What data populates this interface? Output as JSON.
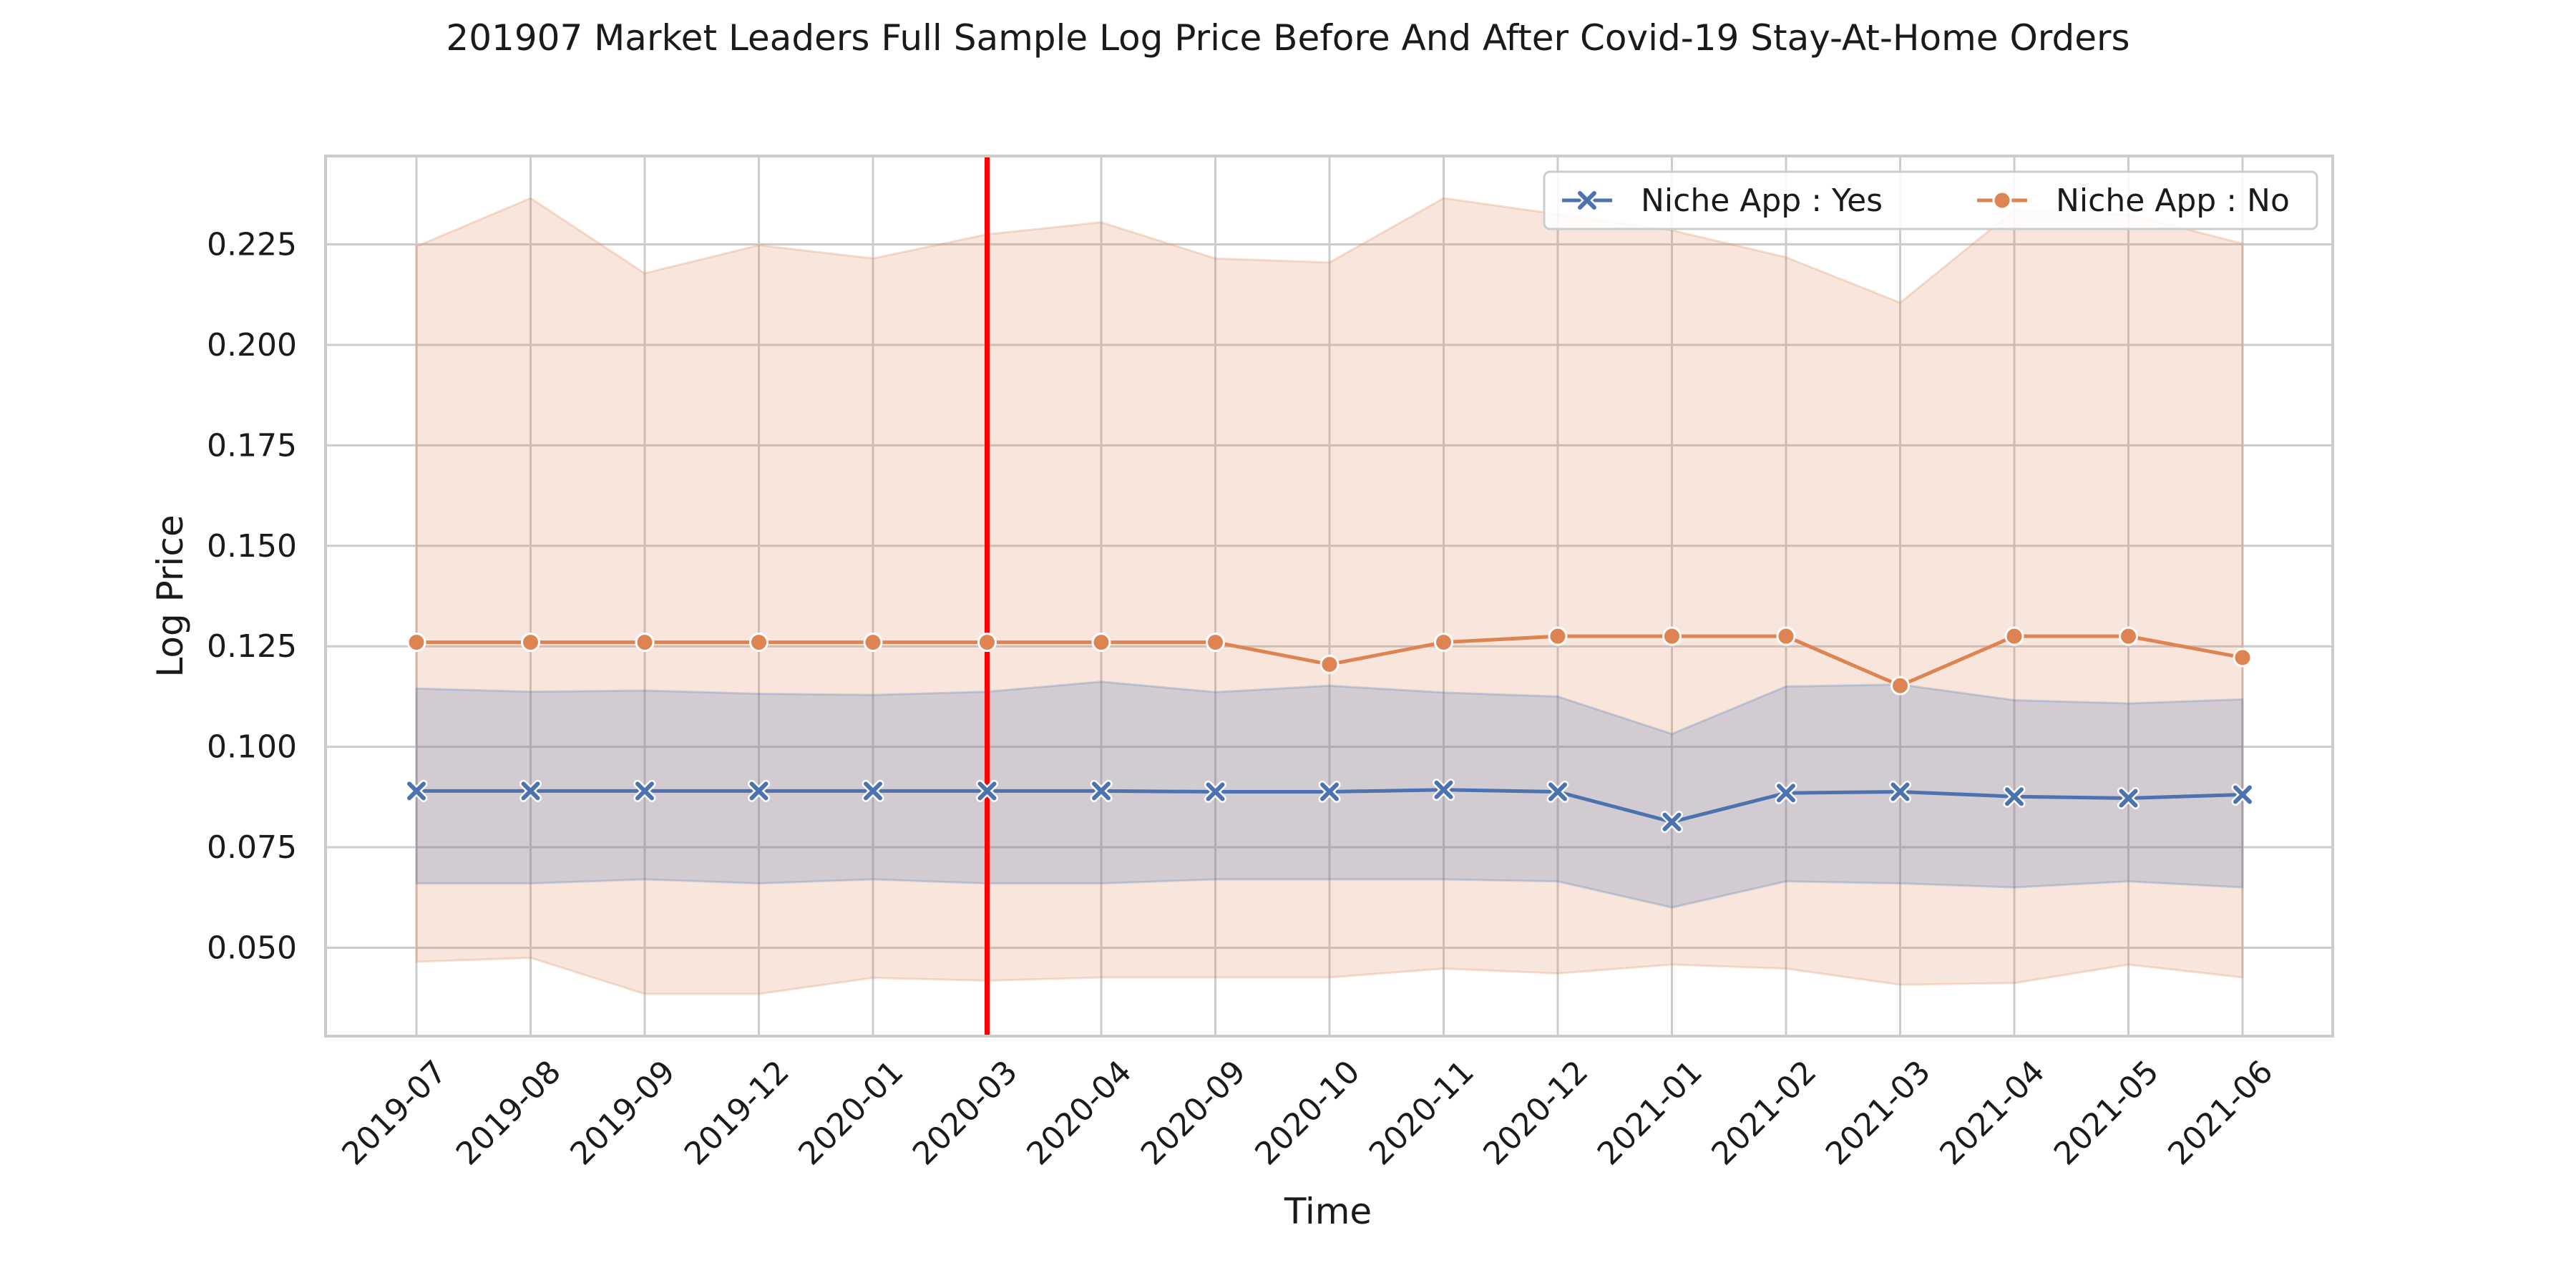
{
  "chart_data": {
    "type": "line",
    "title": "201907 Market Leaders Full Sample Log Price Before And After Covid-19 Stay-At-Home Orders",
    "xlabel": "Time",
    "ylabel": "Log Price",
    "categories": [
      "2019-07",
      "2019-08",
      "2019-09",
      "2019-12",
      "2020-01",
      "2020-03",
      "2020-04",
      "2020-09",
      "2020-10",
      "2020-11",
      "2020-12",
      "2021-01",
      "2021-02",
      "2021-03",
      "2021-04",
      "2021-05",
      "2021-06"
    ],
    "ylim": [
      0.028,
      0.247
    ],
    "yticks": [
      0.05,
      0.075,
      0.1,
      0.125,
      0.15,
      0.175,
      0.2,
      0.225
    ],
    "ytick_labels": [
      "0.050",
      "0.075",
      "0.100",
      "0.125",
      "0.150",
      "0.175",
      "0.200",
      "0.225"
    ],
    "grid": true,
    "legend_position": "top-right",
    "vline": {
      "category": "2020-03",
      "color": "#ff0000"
    },
    "series": [
      {
        "name": "Niche App : Yes",
        "color": "#4c72b0",
        "marker": "x",
        "values": [
          0.089,
          0.089,
          0.089,
          0.089,
          0.089,
          0.089,
          0.089,
          0.0888,
          0.0888,
          0.0893,
          0.0888,
          0.0813,
          0.0885,
          0.0888,
          0.0876,
          0.0872,
          0.0881
        ],
        "ci_low": [
          0.066,
          0.066,
          0.067,
          0.066,
          0.067,
          0.066,
          0.066,
          0.067,
          0.067,
          0.067,
          0.0665,
          0.06,
          0.0665,
          0.066,
          0.065,
          0.0665,
          0.065
        ],
        "ci_high": [
          0.1145,
          0.1137,
          0.114,
          0.1132,
          0.1129,
          0.1137,
          0.1162,
          0.1136,
          0.1152,
          0.1135,
          0.1125,
          0.1032,
          0.115,
          0.1155,
          0.1116,
          0.1108,
          0.1118
        ]
      },
      {
        "name": "Niche App : No",
        "color": "#dd8452",
        "marker": "o",
        "values": [
          0.126,
          0.126,
          0.126,
          0.126,
          0.126,
          0.126,
          0.126,
          0.126,
          0.1205,
          0.126,
          0.1275,
          0.1275,
          0.1275,
          0.1152,
          0.1275,
          0.1275,
          0.1222
        ],
        "ci_low": [
          0.0465,
          0.0475,
          0.0385,
          0.0385,
          0.0425,
          0.0418,
          0.0426,
          0.0426,
          0.0426,
          0.0448,
          0.0436,
          0.0458,
          0.0448,
          0.0408,
          0.0412,
          0.0458,
          0.0426
        ],
        "ci_high": [
          0.2245,
          0.2365,
          0.2178,
          0.2248,
          0.2215,
          0.2275,
          0.2305,
          0.2215,
          0.2205,
          0.2365,
          0.2325,
          0.2285,
          0.2218,
          0.2105,
          0.2335,
          0.2325,
          0.2252
        ]
      }
    ]
  }
}
